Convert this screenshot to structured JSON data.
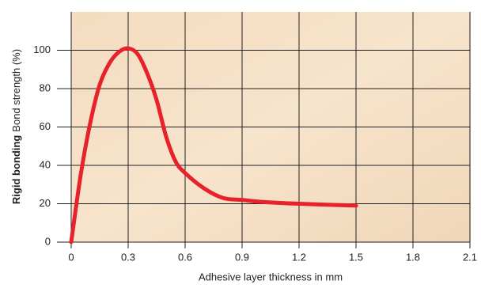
{
  "chart_data": {
    "type": "line",
    "x_label": "Adhesive layer thickness in mm",
    "y_label_bold": "Rigid bonding",
    "y_label": "Bond strength (%)",
    "xlim": [
      0,
      2.1
    ],
    "xticks": [
      0,
      0.3,
      0.6,
      0.9,
      1.2,
      1.5,
      1.8,
      2.1
    ],
    "ylim": [
      0,
      120
    ],
    "yticks": [
      0,
      20,
      40,
      60,
      80,
      100
    ],
    "grid": true,
    "series": [
      {
        "color": "#e8222a",
        "x": [
          0,
          0.05,
          0.1,
          0.15,
          0.2,
          0.25,
          0.3,
          0.35,
          0.4,
          0.45,
          0.5,
          0.55,
          0.6,
          0.7,
          0.8,
          0.9,
          1.0,
          1.2,
          1.5
        ],
        "values": [
          0,
          35,
          62,
          82,
          93,
          99,
          101,
          98,
          88,
          74,
          55,
          42,
          36,
          28,
          23,
          22,
          21,
          20,
          19
        ]
      }
    ]
  }
}
